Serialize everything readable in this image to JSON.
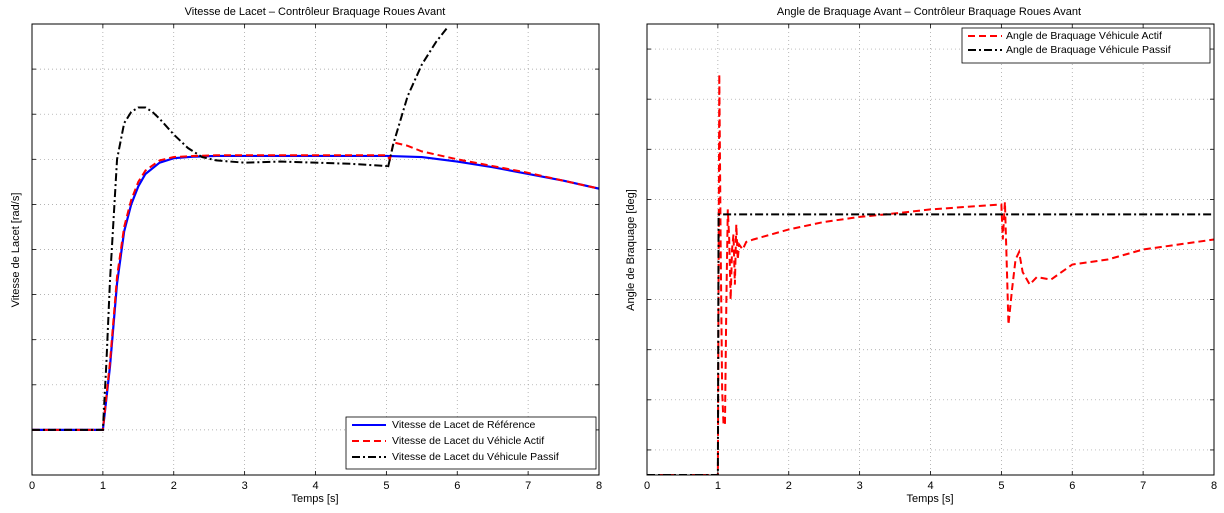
{
  "chart_data": [
    {
      "type": "line",
      "title": "Vitesse de Lacet – Contrôleur Braquage Roues Avant",
      "xlabel": "Temps [s]",
      "ylabel": "Vitesse de Lacet [rad/s]",
      "xlim": [
        0,
        8
      ],
      "ylim": [
        -0.02,
        0.18
      ],
      "xticks": [
        0,
        1,
        2,
        3,
        4,
        5,
        6,
        7,
        8
      ],
      "yticks": [
        0,
        0.02,
        0.04,
        0.06,
        0.08,
        0.1,
        0.12,
        0.14,
        0.16
      ],
      "y_tick_labels_visible": false,
      "grid": true,
      "legend_position": "bottom-right",
      "series": [
        {
          "name": "Vitesse de Lacet de Référence",
          "color": "#0000ff",
          "style": "solid",
          "x": [
            0,
            1,
            1.1,
            1.2,
            1.3,
            1.4,
            1.5,
            1.6,
            1.8,
            2.0,
            2.3,
            2.6,
            3.0,
            4.0,
            5.0,
            5.5,
            6.0,
            6.5,
            7.0,
            7.5,
            8.0
          ],
          "y": [
            0,
            0,
            0.028,
            0.065,
            0.088,
            0.1,
            0.108,
            0.1135,
            0.1185,
            0.1205,
            0.1212,
            0.1215,
            0.1215,
            0.1215,
            0.1215,
            0.121,
            0.119,
            0.1165,
            0.1135,
            0.1105,
            0.107
          ]
        },
        {
          "name": "Vitesse de Lacet du Véhicle Actif",
          "color": "#ff0000",
          "style": "dashed",
          "x": [
            0,
            1,
            1.1,
            1.2,
            1.3,
            1.4,
            1.5,
            1.6,
            1.8,
            2.0,
            2.3,
            2.6,
            3.0,
            4.0,
            5.0,
            5.05,
            5.1,
            5.3,
            5.5,
            6.0,
            6.5,
            7.0,
            7.5,
            8.0
          ],
          "y": [
            0,
            0,
            0.03,
            0.068,
            0.09,
            0.102,
            0.11,
            0.115,
            0.1195,
            0.121,
            0.1215,
            0.1218,
            0.1218,
            0.1218,
            0.1218,
            0.12,
            0.1275,
            0.126,
            0.1235,
            0.12,
            0.117,
            0.114,
            0.1105,
            0.107
          ]
        },
        {
          "name": "Vitesse de Lacet du Véhicule Passif",
          "color": "#000000",
          "style": "dashdot",
          "x": [
            0,
            1,
            1.05,
            1.1,
            1.2,
            1.3,
            1.4,
            1.5,
            1.6,
            1.7,
            1.8,
            2.0,
            2.2,
            2.4,
            2.6,
            2.8,
            3.0,
            3.5,
            4.0,
            4.5,
            5.0,
            5.02,
            5.1,
            5.3,
            5.5,
            5.7,
            5.85
          ],
          "y": [
            0,
            0,
            0.03,
            0.066,
            0.12,
            0.136,
            0.141,
            0.143,
            0.143,
            0.141,
            0.138,
            0.131,
            0.125,
            0.121,
            0.1195,
            0.119,
            0.1185,
            0.119,
            0.1185,
            0.118,
            0.117,
            0.116,
            0.127,
            0.148,
            0.162,
            0.172,
            0.178
          ]
        }
      ]
    },
    {
      "type": "line",
      "title": "Angle de Braquage Avant – Contrôleur Braquage Roues Avant",
      "xlabel": "Temps [s]",
      "ylabel": "Angle de Braquage [deg]",
      "xlim": [
        0,
        8
      ],
      "ylim": [
        -0.5,
        8.5
      ],
      "xticks": [
        0,
        1,
        2,
        3,
        4,
        5,
        6,
        7,
        8
      ],
      "yticks": [
        0,
        1,
        2,
        3,
        4,
        5,
        6,
        7,
        8
      ],
      "y_tick_labels_visible": false,
      "grid": true,
      "legend_position": "top-right",
      "series": [
        {
          "name": "Angle de Braquage Véhicule Actif",
          "color": "#ff0000",
          "style": "dashed",
          "x": [
            0,
            1,
            1.02,
            1.04,
            1.06,
            1.08,
            1.1,
            1.12,
            1.14,
            1.16,
            1.18,
            1.2,
            1.22,
            1.24,
            1.26,
            1.28,
            1.3,
            1.35,
            1.4,
            1.5,
            2.0,
            2.5,
            3.0,
            3.5,
            4.0,
            4.5,
            5.0,
            5.02,
            5.05,
            5.08,
            5.1,
            5.15,
            5.2,
            5.25,
            5.3,
            5.4,
            5.5,
            5.7,
            6.0,
            6.5,
            7.0,
            7.5,
            8.0
          ],
          "y": [
            -0.5,
            -0.5,
            7.5,
            4.0,
            1.2,
            0.5,
            0.5,
            3.0,
            4.8,
            4.2,
            3.0,
            4.0,
            4.3,
            3.3,
            4.5,
            3.8,
            4.1,
            4.0,
            4.15,
            4.2,
            4.4,
            4.55,
            4.65,
            4.72,
            4.8,
            4.85,
            4.9,
            4.2,
            4.95,
            3.5,
            2.5,
            3.2,
            3.8,
            3.95,
            3.55,
            3.3,
            3.45,
            3.4,
            3.7,
            3.8,
            4.0,
            4.1,
            4.2
          ]
        },
        {
          "name": "Angle de Braquage Véhicule Passif",
          "color": "#000000",
          "style": "dashdot",
          "x": [
            0,
            1,
            1.01,
            8
          ],
          "y": [
            -0.5,
            -0.5,
            4.7,
            4.7
          ]
        }
      ]
    }
  ]
}
